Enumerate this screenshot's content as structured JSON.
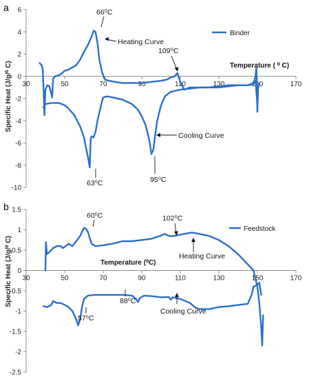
{
  "colors": {
    "curve": "#2a6ec9",
    "axis": "#8c8c8c",
    "text": "#111111"
  },
  "chart_data": [
    {
      "type": "line",
      "panel_label": "a",
      "ylabel": "Specific  Heat  (J/g/⁰ C)",
      "xlabel": "Temperature ( ⁰ C)",
      "xlim": [
        30,
        170
      ],
      "ylim": [
        -10,
        6
      ],
      "x_ticks": [
        30,
        50,
        70,
        90,
        110,
        130,
        150,
        170
      ],
      "y_ticks": [
        6,
        4,
        2,
        0,
        -2,
        -4,
        -6,
        -8,
        -10
      ],
      "grid": false,
      "legend": {
        "position": "top-right"
      },
      "series": [
        {
          "name": "Binder",
          "points": [
            [
              37,
              1.2
            ],
            [
              38,
              1.0
            ],
            [
              38.6,
              0.6
            ],
            [
              39,
              -1.0
            ],
            [
              39.5,
              -3.5
            ],
            [
              40,
              -1.2
            ],
            [
              41,
              -0.8
            ],
            [
              42,
              -0.9
            ],
            [
              43,
              -1.5
            ],
            [
              43.5,
              -1.9
            ],
            [
              44,
              -0.2
            ],
            [
              45,
              0.0
            ],
            [
              47,
              0.1
            ],
            [
              48,
              0.2
            ],
            [
              50,
              0.5
            ],
            [
              52,
              0.6
            ],
            [
              54,
              0.8
            ],
            [
              56,
              1.0
            ],
            [
              58,
              1.5
            ],
            [
              60,
              2.2
            ],
            [
              62,
              2.8
            ],
            [
              64,
              3.6
            ],
            [
              65,
              4.1
            ],
            [
              66,
              4.0
            ],
            [
              67,
              3.0
            ],
            [
              68,
              1.5
            ],
            [
              69.5,
              0.3
            ],
            [
              71,
              -0.3
            ],
            [
              73,
              -0.4
            ],
            [
              76,
              -0.5
            ],
            [
              80,
              -0.6
            ],
            [
              85,
              -0.6
            ],
            [
              90,
              -0.6
            ],
            [
              95,
              -0.5
            ],
            [
              100,
              -0.4
            ],
            [
              103,
              -0.3
            ],
            [
              105,
              -0.1
            ],
            [
              107,
              0.0
            ],
            [
              108.5,
              0.3
            ],
            [
              110,
              -0.5
            ],
            [
              112,
              -1.2
            ],
            [
              115,
              -1.0
            ],
            [
              120,
              -1.0
            ],
            [
              125,
              -1.0
            ],
            [
              130,
              -0.9
            ],
            [
              135,
              -0.8
            ],
            [
              140,
              -0.8
            ],
            [
              145,
              -0.8
            ],
            [
              148,
              -0.7
            ],
            [
              149,
              0.0
            ],
            [
              149.5,
              0.8
            ],
            [
              150,
              -3.2
            ],
            [
              150.4,
              -1.0
            ],
            [
              151,
              -0.6
            ]
          ]
        },
        {
          "name": "Cooling Curve",
          "points": [
            [
              39,
              -2.8
            ],
            [
              40,
              -2.5
            ],
            [
              43,
              -2.4
            ],
            [
              45,
              -2.4
            ],
            [
              47,
              -2.4
            ],
            [
              50,
              -2.6
            ],
            [
              52,
              -2.9
            ],
            [
              55,
              -3.5
            ],
            [
              58,
              -4.5
            ],
            [
              60,
              -5.5
            ],
            [
              61,
              -6.4
            ],
            [
              62,
              -7.2
            ],
            [
              63,
              -8.2
            ],
            [
              63.5,
              -5.6
            ],
            [
              64,
              -5.4
            ],
            [
              65,
              -5.5
            ],
            [
              66,
              -5.0
            ],
            [
              67,
              -4.0
            ],
            [
              69,
              -2.5
            ],
            [
              70,
              -1.9
            ],
            [
              72,
              -1.8
            ],
            [
              75,
              -1.9
            ],
            [
              80,
              -2.1
            ],
            [
              85,
              -2.5
            ],
            [
              88,
              -3.0
            ],
            [
              90,
              -3.6
            ],
            [
              92,
              -4.4
            ],
            [
              94,
              -5.8
            ],
            [
              95,
              -7.0
            ],
            [
              96,
              -6.6
            ],
            [
              97,
              -5.2
            ],
            [
              98,
              -4.0
            ],
            [
              100,
              -2.6
            ],
            [
              102,
              -1.8
            ],
            [
              105,
              -1.4
            ],
            [
              110,
              -1.2
            ],
            [
              115,
              -1.1
            ],
            [
              120,
              -1.0
            ],
            [
              125,
              -1.0
            ],
            [
              130,
              -1.0
            ],
            [
              135,
              -0.9
            ],
            [
              140,
              -0.8
            ],
            [
              145,
              -0.8
            ],
            [
              148,
              -0.6
            ],
            [
              149,
              -0.4
            ],
            [
              150,
              -2.5
            ]
          ]
        }
      ],
      "annotations": [
        {
          "text": "66⁰C",
          "x": 65,
          "y": 4.1
        },
        {
          "text": "Heating Curve",
          "x": 66,
          "y": 3.4
        },
        {
          "text": "109⁰C",
          "x": 108.5,
          "y": 0.3
        },
        {
          "text": "Cooling Curve",
          "x": 96,
          "y": -5.2
        },
        {
          "text": "63⁰C",
          "x": 63,
          "y": -8.2
        },
        {
          "text": "95⁰C",
          "x": 95,
          "y": -7.0
        }
      ]
    },
    {
      "type": "line",
      "panel_label": "b",
      "ylabel": "Specific Heat (J/g/⁰ C)",
      "xlabel": "Temperature (⁰C)",
      "xlim": [
        30,
        170
      ],
      "ylim": [
        -2.5,
        1.5
      ],
      "x_ticks": [
        30,
        50,
        70,
        90,
        110,
        130,
        150,
        170
      ],
      "y_ticks": [
        1.5,
        1,
        0.5,
        0,
        -0.5,
        -1,
        -1.5,
        -2,
        -2.5
      ],
      "grid": false,
      "legend": {
        "position": "top-right"
      },
      "series": [
        {
          "name": "Feedstock",
          "points": [
            [
              40,
              0.0
            ],
            [
              40.3,
              0.7
            ],
            [
              40.8,
              0.4
            ],
            [
              42,
              0.45
            ],
            [
              44,
              0.55
            ],
            [
              46,
              0.6
            ],
            [
              48,
              0.6
            ],
            [
              49,
              0.55
            ],
            [
              50,
              0.58
            ],
            [
              52,
              0.66
            ],
            [
              54,
              0.6
            ],
            [
              56,
              0.72
            ],
            [
              58,
              0.85
            ],
            [
              60,
              1.05
            ],
            [
              61,
              1.03
            ],
            [
              62,
              0.95
            ],
            [
              63,
              0.8
            ],
            [
              64,
              0.65
            ],
            [
              66,
              0.6
            ],
            [
              70,
              0.62
            ],
            [
              75,
              0.66
            ],
            [
              80,
              0.72
            ],
            [
              85,
              0.72
            ],
            [
              90,
              0.75
            ],
            [
              95,
              0.78
            ],
            [
              100,
              0.86
            ],
            [
              102,
              0.9
            ],
            [
              103,
              0.87
            ],
            [
              105,
              0.84
            ],
            [
              108,
              0.86
            ],
            [
              112,
              0.9
            ],
            [
              116,
              0.93
            ],
            [
              120,
              0.9
            ],
            [
              125,
              0.85
            ],
            [
              130,
              0.75
            ],
            [
              135,
              0.6
            ],
            [
              140,
              0.4
            ],
            [
              145,
              0.15
            ],
            [
              148,
              0.0
            ],
            [
              150,
              -0.4
            ],
            [
              151,
              -0.8
            ],
            [
              152,
              -1.4
            ],
            [
              152.5,
              -1.85
            ],
            [
              153,
              -1.1
            ]
          ]
        },
        {
          "name": "Cooling Curve",
          "points": [
            [
              39,
              -0.88
            ],
            [
              41,
              -0.9
            ],
            [
              43,
              -0.85
            ],
            [
              44,
              -0.75
            ],
            [
              46,
              -0.8
            ],
            [
              48,
              -0.8
            ],
            [
              50,
              -0.85
            ],
            [
              52,
              -0.9
            ],
            [
              54,
              -1.0
            ],
            [
              56,
              -1.2
            ],
            [
              57,
              -1.35
            ],
            [
              58,
              -1.2
            ],
            [
              59,
              -0.9
            ],
            [
              60,
              -0.7
            ],
            [
              62,
              -0.62
            ],
            [
              65,
              -0.6
            ],
            [
              70,
              -0.6
            ],
            [
              75,
              -0.6
            ],
            [
              80,
              -0.6
            ],
            [
              85,
              -0.62
            ],
            [
              87,
              -0.7
            ],
            [
              88,
              -0.78
            ],
            [
              89,
              -0.68
            ],
            [
              91,
              -0.62
            ],
            [
              95,
              -0.63
            ],
            [
              100,
              -0.66
            ],
            [
              104,
              -0.65
            ],
            [
              105,
              -0.72
            ],
            [
              106,
              -0.66
            ],
            [
              110,
              -0.7
            ],
            [
              115,
              -0.8
            ],
            [
              118,
              -0.92
            ],
            [
              120,
              -0.95
            ],
            [
              125,
              -0.95
            ],
            [
              130,
              -0.9
            ],
            [
              135,
              -0.88
            ],
            [
              140,
              -0.85
            ],
            [
              145,
              -0.82
            ],
            [
              147,
              -0.6
            ],
            [
              148,
              -0.4
            ],
            [
              150,
              -0.35
            ],
            [
              151,
              -0.3
            ],
            [
              152,
              -0.6
            ]
          ]
        }
      ],
      "annotations": [
        {
          "text": "60⁰C",
          "x": 60,
          "y": 1.05
        },
        {
          "text": "102⁰C",
          "x": 102,
          "y": 0.9
        },
        {
          "text": "Heating Curve",
          "x": 110,
          "y": 0.87
        },
        {
          "text": "57⁰C",
          "x": 57,
          "y": -1.35
        },
        {
          "text": "88⁰C",
          "x": 88,
          "y": -0.78
        },
        {
          "text": "Cooling Curve",
          "x": 115,
          "y": -0.8
        }
      ]
    }
  ]
}
